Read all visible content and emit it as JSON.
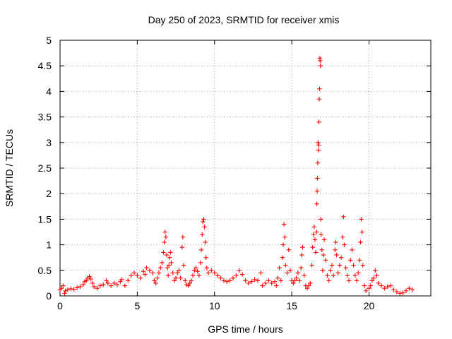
{
  "chart_data": {
    "type": "scatter",
    "title": "Day 250 of 2023, SRMTID for receiver xmis",
    "xlabel": "GPS time / hours",
    "ylabel": "SRMTID / TECUs",
    "xlim": [
      0,
      24
    ],
    "ylim": [
      0,
      5
    ],
    "grid": true,
    "marker": "+",
    "marker_color": "#ff0000",
    "x_ticks": [
      {
        "value": 0,
        "label": "0"
      },
      {
        "value": 5,
        "label": "5"
      },
      {
        "value": 10,
        "label": "10"
      },
      {
        "value": 15,
        "label": "15"
      },
      {
        "value": 20,
        "label": "20"
      }
    ],
    "y_ticks": [
      {
        "value": 0,
        "label": "0"
      },
      {
        "value": 0.5,
        "label": "0.5"
      },
      {
        "value": 1,
        "label": "1"
      },
      {
        "value": 1.5,
        "label": "1.5"
      },
      {
        "value": 2,
        "label": "2"
      },
      {
        "value": 2.5,
        "label": "2.5"
      },
      {
        "value": 3,
        "label": "3"
      },
      {
        "value": 3.5,
        "label": "3.5"
      },
      {
        "value": 4,
        "label": "4"
      },
      {
        "value": 4.5,
        "label": "4.5"
      },
      {
        "value": 5,
        "label": "5"
      }
    ],
    "series": [
      {
        "name": "SRMTID",
        "points": [
          [
            0.0,
            0.12
          ],
          [
            0.1,
            0.15
          ],
          [
            0.2,
            0.2
          ],
          [
            0.3,
            0.05
          ],
          [
            0.35,
            0.1
          ],
          [
            0.5,
            0.12
          ],
          [
            0.7,
            0.14
          ],
          [
            0.9,
            0.13
          ],
          [
            1.1,
            0.16
          ],
          [
            1.3,
            0.18
          ],
          [
            1.5,
            0.22
          ],
          [
            1.6,
            0.28
          ],
          [
            1.7,
            0.3
          ],
          [
            1.8,
            0.35
          ],
          [
            1.9,
            0.38
          ],
          [
            2.0,
            0.33
          ],
          [
            2.1,
            0.25
          ],
          [
            2.2,
            0.18
          ],
          [
            2.4,
            0.15
          ],
          [
            2.6,
            0.2
          ],
          [
            2.8,
            0.22
          ],
          [
            3.0,
            0.3
          ],
          [
            3.1,
            0.25
          ],
          [
            3.3,
            0.2
          ],
          [
            3.5,
            0.25
          ],
          [
            3.7,
            0.22
          ],
          [
            3.9,
            0.28
          ],
          [
            4.0,
            0.32
          ],
          [
            4.2,
            0.2
          ],
          [
            4.4,
            0.3
          ],
          [
            4.6,
            0.4
          ],
          [
            4.8,
            0.45
          ],
          [
            5.0,
            0.4
          ],
          [
            5.2,
            0.35
          ],
          [
            5.4,
            0.48
          ],
          [
            5.5,
            0.42
          ],
          [
            5.6,
            0.55
          ],
          [
            5.8,
            0.5
          ],
          [
            6.0,
            0.45
          ],
          [
            6.1,
            0.3
          ],
          [
            6.2,
            0.25
          ],
          [
            6.3,
            0.35
          ],
          [
            6.4,
            0.45
          ],
          [
            6.5,
            0.55
          ],
          [
            6.6,
            0.65
          ],
          [
            6.7,
            0.85
          ],
          [
            6.75,
            1.05
          ],
          [
            6.8,
            1.25
          ],
          [
            6.85,
            1.15
          ],
          [
            6.9,
            0.8
          ],
          [
            6.95,
            0.55
          ],
          [
            7.0,
            0.4
          ],
          [
            7.05,
            0.6
          ],
          [
            7.1,
            0.75
          ],
          [
            7.15,
            0.85
          ],
          [
            7.2,
            0.65
          ],
          [
            7.3,
            0.45
          ],
          [
            7.4,
            0.3
          ],
          [
            7.5,
            0.35
          ],
          [
            7.6,
            0.45
          ],
          [
            7.7,
            0.5
          ],
          [
            7.8,
            0.35
          ],
          [
            7.9,
            0.95
          ],
          [
            7.95,
            1.15
          ],
          [
            8.0,
            0.6
          ],
          [
            8.1,
            0.3
          ],
          [
            8.2,
            0.22
          ],
          [
            8.3,
            0.2
          ],
          [
            8.4,
            0.25
          ],
          [
            8.5,
            0.3
          ],
          [
            8.6,
            0.4
          ],
          [
            8.7,
            0.5
          ],
          [
            8.8,
            0.55
          ],
          [
            8.9,
            0.48
          ],
          [
            9.0,
            0.4
          ],
          [
            9.1,
            0.65
          ],
          [
            9.15,
            0.9
          ],
          [
            9.2,
            1.2
          ],
          [
            9.25,
            1.45
          ],
          [
            9.3,
            1.5
          ],
          [
            9.35,
            1.35
          ],
          [
            9.4,
            1.05
          ],
          [
            9.45,
            0.75
          ],
          [
            9.5,
            0.55
          ],
          [
            9.6,
            0.45
          ],
          [
            9.8,
            0.5
          ],
          [
            10.0,
            0.45
          ],
          [
            10.2,
            0.4
          ],
          [
            10.4,
            0.35
          ],
          [
            10.6,
            0.3
          ],
          [
            10.8,
            0.28
          ],
          [
            11.0,
            0.3
          ],
          [
            11.2,
            0.35
          ],
          [
            11.4,
            0.4
          ],
          [
            11.6,
            0.5
          ],
          [
            11.8,
            0.42
          ],
          [
            12.0,
            0.3
          ],
          [
            12.2,
            0.25
          ],
          [
            12.4,
            0.28
          ],
          [
            12.6,
            0.32
          ],
          [
            12.8,
            0.3
          ],
          [
            13.0,
            0.45
          ],
          [
            13.1,
            0.2
          ],
          [
            13.3,
            0.25
          ],
          [
            13.5,
            0.3
          ],
          [
            13.7,
            0.25
          ],
          [
            13.9,
            0.28
          ],
          [
            14.0,
            0.2
          ],
          [
            14.1,
            0.35
          ],
          [
            14.2,
            0.55
          ],
          [
            14.3,
            0.3
          ],
          [
            14.4,
            0.75
          ],
          [
            14.45,
            1.0
          ],
          [
            14.5,
            1.4
          ],
          [
            14.55,
            1.15
          ],
          [
            14.6,
            0.6
          ],
          [
            14.7,
            0.45
          ],
          [
            14.8,
            0.9
          ],
          [
            14.9,
            0.5
          ],
          [
            15.0,
            0.3
          ],
          [
            15.1,
            0.25
          ],
          [
            15.2,
            0.3
          ],
          [
            15.3,
            0.35
          ],
          [
            15.4,
            0.45
          ],
          [
            15.5,
            0.3
          ],
          [
            15.6,
            0.55
          ],
          [
            15.65,
            0.8
          ],
          [
            15.7,
            0.95
          ],
          [
            15.8,
            0.4
          ],
          [
            15.9,
            0.2
          ],
          [
            16.0,
            0.15
          ],
          [
            16.1,
            0.2
          ],
          [
            16.2,
            0.25
          ],
          [
            16.3,
            0.6
          ],
          [
            16.35,
            0.95
          ],
          [
            16.4,
            1.2
          ],
          [
            16.45,
            1.35
          ],
          [
            16.5,
            1.1
          ],
          [
            16.55,
            0.85
          ],
          [
            16.6,
            1.25
          ],
          [
            16.62,
            1.8
          ],
          [
            16.64,
            2.05
          ],
          [
            16.66,
            2.3
          ],
          [
            16.68,
            2.6
          ],
          [
            16.7,
            3.0
          ],
          [
            16.72,
            2.85
          ],
          [
            16.74,
            2.95
          ],
          [
            16.76,
            3.4
          ],
          [
            16.78,
            3.85
          ],
          [
            16.8,
            4.05
          ],
          [
            16.82,
            4.65
          ],
          [
            16.84,
            4.6
          ],
          [
            16.86,
            4.5
          ],
          [
            16.88,
            1.5
          ],
          [
            16.9,
            1.2
          ],
          [
            16.95,
            0.9
          ],
          [
            17.0,
            0.5
          ],
          [
            17.05,
            0.8
          ],
          [
            17.1,
            1.1
          ],
          [
            17.2,
            0.7
          ],
          [
            17.3,
            0.4
          ],
          [
            17.4,
            0.3
          ],
          [
            17.5,
            0.5
          ],
          [
            17.6,
            0.6
          ],
          [
            17.7,
            0.4
          ],
          [
            17.8,
            0.9
          ],
          [
            17.85,
            1.05
          ],
          [
            17.9,
            0.8
          ],
          [
            18.0,
            0.45
          ],
          [
            18.1,
            0.6
          ],
          [
            18.2,
            0.75
          ],
          [
            18.3,
            1.15
          ],
          [
            18.35,
            1.55
          ],
          [
            18.4,
            1.0
          ],
          [
            18.5,
            0.55
          ],
          [
            18.6,
            0.4
          ],
          [
            18.7,
            0.3
          ],
          [
            18.8,
            0.7
          ],
          [
            18.9,
            0.9
          ],
          [
            19.0,
            0.6
          ],
          [
            19.1,
            0.4
          ],
          [
            19.2,
            0.3
          ],
          [
            19.3,
            0.45
          ],
          [
            19.4,
            0.7
          ],
          [
            19.45,
            1.05
          ],
          [
            19.5,
            1.5
          ],
          [
            19.55,
            1.25
          ],
          [
            19.6,
            0.6
          ],
          [
            19.7,
            0.2
          ],
          [
            19.8,
            0.1
          ],
          [
            20.0,
            0.15
          ],
          [
            20.1,
            0.2
          ],
          [
            20.2,
            0.3
          ],
          [
            20.3,
            0.35
          ],
          [
            20.4,
            0.5
          ],
          [
            20.5,
            0.4
          ],
          [
            20.6,
            0.25
          ],
          [
            20.8,
            0.2
          ],
          [
            21.0,
            0.15
          ],
          [
            21.2,
            0.18
          ],
          [
            21.4,
            0.2
          ],
          [
            21.6,
            0.12
          ],
          [
            21.8,
            0.08
          ],
          [
            22.0,
            0.05
          ],
          [
            22.2,
            0.06
          ],
          [
            22.4,
            0.1
          ],
          [
            22.6,
            0.15
          ],
          [
            22.8,
            0.12
          ]
        ]
      }
    ]
  }
}
